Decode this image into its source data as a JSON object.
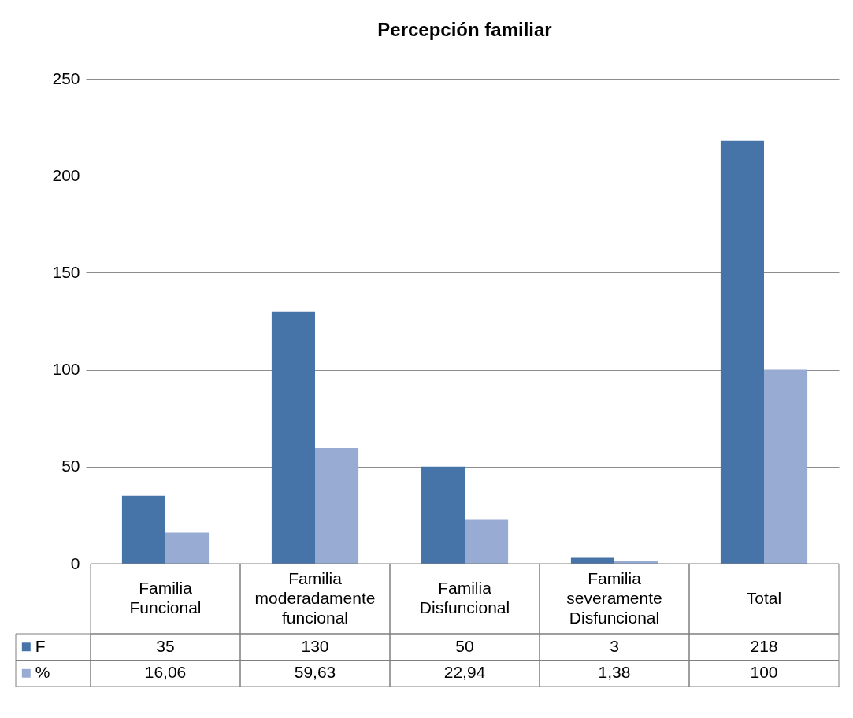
{
  "chart_data": {
    "type": "bar",
    "title": "Percepción familiar",
    "categories": [
      "Familia Funcional",
      "Familia moderadamente funcional",
      "Familia Disfuncional",
      "Familia severamente Disfuncional",
      "Total"
    ],
    "series": [
      {
        "name": "F",
        "color": "#4674a9",
        "values": [
          35,
          130,
          50,
          3,
          218
        ],
        "value_labels": [
          "35",
          "130",
          "50",
          "3",
          "218"
        ]
      },
      {
        "name": "%",
        "color": "#98acd3",
        "values": [
          16.06,
          59.63,
          22.94,
          1.38,
          100
        ],
        "value_labels": [
          "16,06",
          "59,63",
          "22,94",
          "1,38",
          "100"
        ]
      }
    ],
    "ylim": [
      0,
      250
    ],
    "yticks": [
      0,
      50,
      100,
      150,
      200,
      250
    ],
    "grid": "y",
    "legend": "bottom left"
  }
}
